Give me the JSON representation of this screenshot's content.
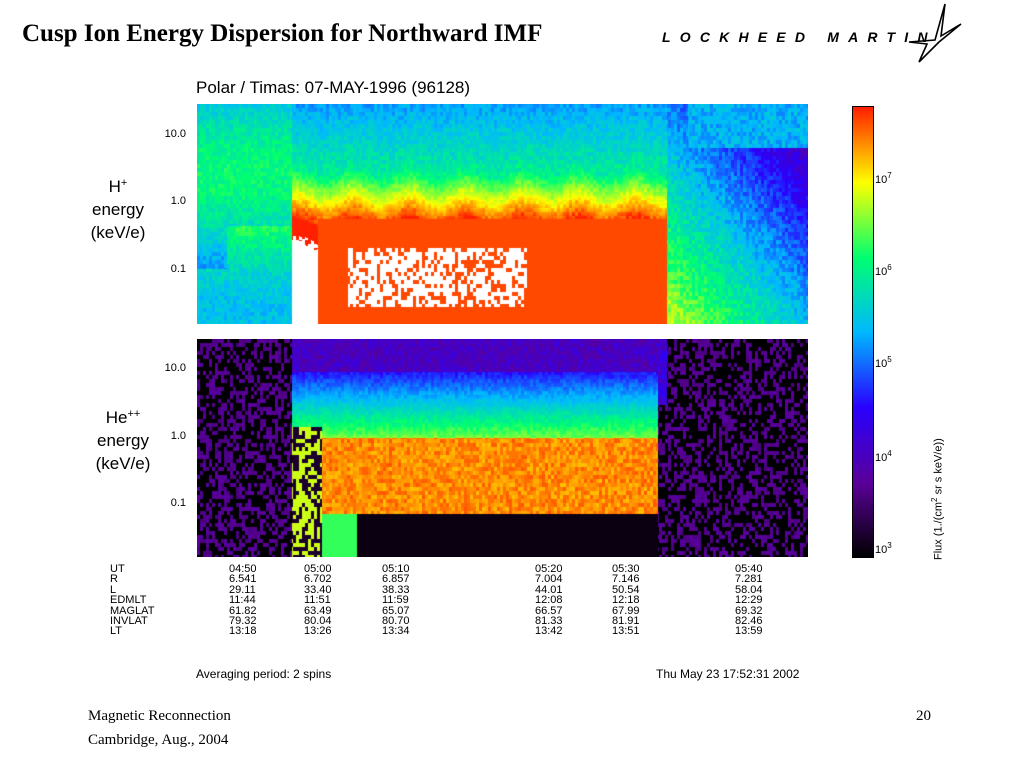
{
  "slide": {
    "title": "Cusp Ion Energy Dispersion for Northward IMF",
    "logo_text": "LOCKHEED MARTIN",
    "footer_line1": "Magnetic Reconnection",
    "footer_line2": "Cambridge, Aug., 2004",
    "page_number": "20"
  },
  "chart_data": {
    "type": "heatmap",
    "title": "Polar / Timas:   07-MAY-1996   (96128)",
    "panels": [
      {
        "species_base": "H",
        "species_sup": "+",
        "ylabel_line2": "energy",
        "ylabel_line3": "(keV/e)",
        "y_scale": "log",
        "ylim_keV": [
          0.02,
          20
        ],
        "yticks": [
          "10.0",
          "1.0",
          "0.1"
        ]
      },
      {
        "species_base": "He",
        "species_sup": "++",
        "ylabel_line2": "energy",
        "ylabel_line3": "(keV/e)",
        "y_scale": "log",
        "ylim_keV": [
          0.02,
          20
        ],
        "yticks": [
          "10.0",
          "1.0",
          "0.1"
        ]
      }
    ],
    "x_time_ut": [
      "04:50",
      "05:00",
      "05:10",
      "05:20",
      "05:30",
      "05:40"
    ],
    "colorbar": {
      "label_prefix": "Flux (1./(cm",
      "label_mid": " sr s keV/e))",
      "scale": "log",
      "range": [
        1000,
        50000000
      ],
      "tick_base": "10",
      "tick_exponents": [
        "7",
        "6",
        "5",
        "4",
        "3"
      ],
      "colors": [
        "#000000",
        "#5a009a",
        "#2a00ff",
        "#00b8ff",
        "#00ff70",
        "#ffff00",
        "#ff2000"
      ]
    },
    "orbit_table": {
      "labels": [
        "UT",
        "R",
        "L",
        "EDMLT",
        "MAGLAT",
        "INVLAT",
        "LT"
      ],
      "columns": [
        [
          "04:50",
          "6.541",
          "29.11",
          "11:44",
          "61.82",
          "79.32",
          "13:18"
        ],
        [
          "05:00",
          "6.702",
          "33.40",
          "11:51",
          "63.49",
          "80.04",
          "13:26"
        ],
        [
          "05:10",
          "6.857",
          "38.33",
          "11:59",
          "65.07",
          "80.70",
          "13:34"
        ],
        [
          "05:20",
          "7.004",
          "44.01",
          "12:08",
          "66.57",
          "81.33",
          "13:42"
        ],
        [
          "05:30",
          "7.146",
          "50.54",
          "12:18",
          "67.99",
          "81.91",
          "13:51"
        ],
        [
          "05:40",
          "7.281",
          "58.04",
          "12:29",
          "69.32",
          "82.46",
          "13:59"
        ]
      ]
    },
    "averaging": "Averaging period: 2 spins",
    "timestamp": "Thu May 23 17:52:31 2002"
  }
}
